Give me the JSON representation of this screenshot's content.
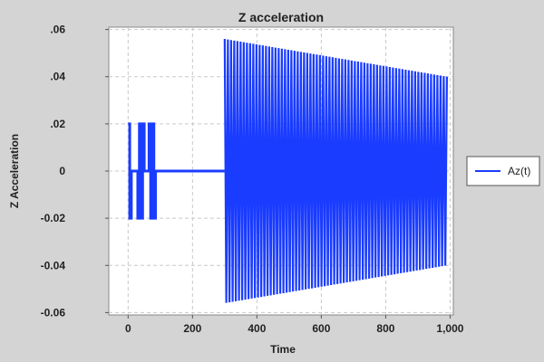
{
  "chart_data": {
    "type": "line",
    "title": "Z acceleration",
    "xlabel": "Time",
    "ylabel": "Z Acceleration",
    "xlim": [
      -60,
      1010
    ],
    "ylim": [
      -0.061,
      0.061
    ],
    "x_ticks": [
      0,
      200,
      400,
      600,
      800,
      1000
    ],
    "x_tick_labels": [
      "0",
      "200",
      "400",
      "600",
      "800",
      "1,000"
    ],
    "y_ticks": [
      -0.06,
      -0.04,
      -0.02,
      0,
      0.02,
      0.04,
      0.06
    ],
    "y_tick_labels": [
      "-0.06",
      "-0.04",
      "-0.02",
      "0",
      ".02",
      ".04",
      ".06"
    ],
    "grid": true,
    "legend_position": "right",
    "series": [
      {
        "name": "Az(t)",
        "color": "#1a3cff",
        "segments": {
          "steps": {
            "x": [
              0,
              5,
              5,
              10,
              10,
              15,
              15,
              30,
              30,
              35,
              35,
              40,
              40,
              45,
              45,
              50,
              50,
              55,
              55,
              65,
              65,
              70,
              70,
              75,
              75,
              80,
              80,
              85,
              85,
              300
            ],
            "y": [
              0.02,
              0.02,
              -0.02,
              -0.02,
              0,
              0,
              0,
              0,
              -0.02,
              -0.02,
              0.02,
              0.02,
              -0.02,
              -0.02,
              0.02,
              0.02,
              0,
              0,
              0,
              0,
              0.02,
              0.02,
              -0.02,
              -0.02,
              0.02,
              0.02,
              -0.02,
              -0.02,
              0,
              0
            ]
          },
          "oscillation": {
            "x_start": 300,
            "x_end": 990,
            "amplitude_start": 0.056,
            "amplitude_end": 0.04
          }
        }
      }
    ]
  }
}
